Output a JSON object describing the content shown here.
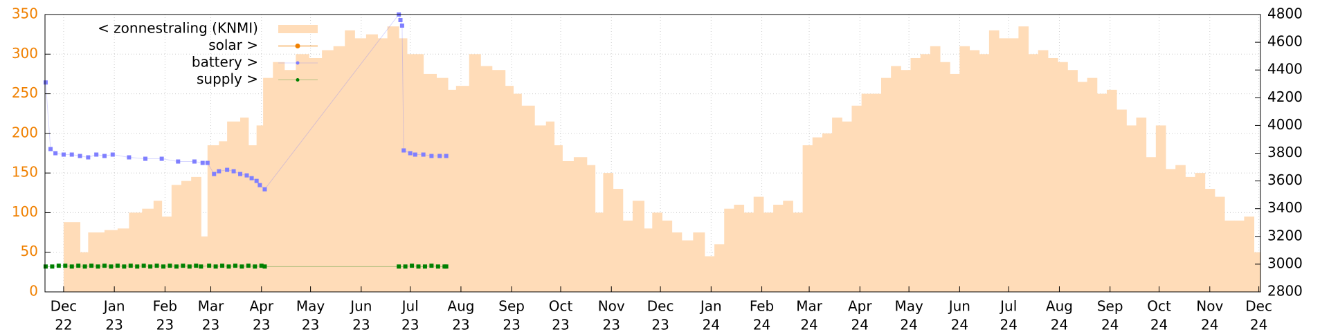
{
  "chart_data": {
    "type": "mixed",
    "xlim": [
      -11.4,
      732
    ],
    "xticks": [
      {
        "value": 0,
        "label": [
          "Dec",
          "22"
        ]
      },
      {
        "value": 31,
        "label": [
          "Jan",
          "23"
        ]
      },
      {
        "value": 62,
        "label": [
          "Feb",
          "23"
        ]
      },
      {
        "value": 90,
        "label": [
          "Mar",
          "23"
        ]
      },
      {
        "value": 121,
        "label": [
          "Apr",
          "23"
        ]
      },
      {
        "value": 151,
        "label": [
          "May",
          "23"
        ]
      },
      {
        "value": 182,
        "label": [
          "Jun",
          "23"
        ]
      },
      {
        "value": 212,
        "label": [
          "Jul",
          "23"
        ]
      },
      {
        "value": 243,
        "label": [
          "Aug",
          "23"
        ]
      },
      {
        "value": 274,
        "label": [
          "Sep",
          "23"
        ]
      },
      {
        "value": 304,
        "label": [
          "Oct",
          "23"
        ]
      },
      {
        "value": 335,
        "label": [
          "Nov",
          "23"
        ]
      },
      {
        "value": 365,
        "label": [
          "Dec",
          "23"
        ]
      },
      {
        "value": 396,
        "label": [
          "Jan",
          "24"
        ]
      },
      {
        "value": 427,
        "label": [
          "Feb",
          "24"
        ]
      },
      {
        "value": 456,
        "label": [
          "Mar",
          "24"
        ]
      },
      {
        "value": 487,
        "label": [
          "Apr",
          "24"
        ]
      },
      {
        "value": 517,
        "label": [
          "May",
          "24"
        ]
      },
      {
        "value": 548,
        "label": [
          "Jun",
          "24"
        ]
      },
      {
        "value": 578,
        "label": [
          "Jul",
          "24"
        ]
      },
      {
        "value": 609,
        "label": [
          "Aug",
          "24"
        ]
      },
      {
        "value": 640,
        "label": [
          "Sep",
          "24"
        ]
      },
      {
        "value": 670,
        "label": [
          "Oct",
          "24"
        ]
      },
      {
        "value": 701,
        "label": [
          "Nov",
          "24"
        ]
      },
      {
        "value": 731,
        "label": [
          "Dec",
          "24"
        ]
      }
    ],
    "ylim": [
      0,
      350
    ],
    "yticks": [
      0,
      50,
      100,
      150,
      200,
      250,
      300,
      350
    ],
    "y2lim": [
      2800,
      4800
    ],
    "y2ticks": [
      2800,
      3000,
      3200,
      3400,
      3600,
      3800,
      4000,
      4200,
      4400,
      4600,
      4800
    ],
    "grid": true,
    "legend": "top-left",
    "ytick_color": "#f08000",
    "series": [
      {
        "name": "< zonnestraling (KNMI)",
        "type": "area",
        "color": "#ffdcb8",
        "x": [
          0,
          10,
          15,
          25,
          33,
          40,
          48,
          55,
          60,
          66,
          72,
          78,
          84,
          88,
          95,
          100,
          108,
          113,
          118,
          122,
          128,
          135,
          142,
          150,
          158,
          165,
          172,
          178,
          185,
          192,
          198,
          205,
          210,
          215,
          220,
          228,
          235,
          240,
          248,
          255,
          262,
          270,
          275,
          280,
          288,
          295,
          300,
          305,
          312,
          320,
          325,
          330,
          336,
          342,
          348,
          355,
          360,
          366,
          372,
          378,
          385,
          392,
          398,
          404,
          410,
          416,
          422,
          428,
          434,
          440,
          446,
          452,
          458,
          464,
          470,
          476,
          482,
          488,
          494,
          500,
          506,
          512,
          518,
          524,
          530,
          536,
          542,
          548,
          554,
          560,
          566,
          572,
          578,
          584,
          590,
          596,
          602,
          608,
          614,
          620,
          626,
          632,
          638,
          644,
          650,
          656,
          662,
          668,
          674,
          680,
          686,
          692,
          698,
          704,
          710,
          716,
          722,
          728
        ],
        "values": [
          88,
          50,
          75,
          78,
          80,
          100,
          105,
          115,
          95,
          135,
          140,
          145,
          70,
          185,
          190,
          215,
          220,
          185,
          210,
          270,
          290,
          280,
          300,
          295,
          305,
          310,
          330,
          320,
          325,
          320,
          335,
          320,
          300,
          300,
          275,
          270,
          255,
          260,
          300,
          285,
          280,
          260,
          250,
          235,
          210,
          215,
          185,
          165,
          170,
          160,
          100,
          150,
          130,
          90,
          115,
          80,
          100,
          90,
          75,
          65,
          75,
          45,
          60,
          105,
          110,
          100,
          120,
          100,
          110,
          115,
          100,
          185,
          195,
          200,
          220,
          215,
          235,
          250,
          250,
          270,
          285,
          280,
          295,
          300,
          310,
          290,
          275,
          310,
          305,
          300,
          330,
          320,
          320,
          335,
          300,
          305,
          295,
          290,
          280,
          265,
          270,
          250,
          255,
          230,
          210,
          220,
          170,
          210,
          155,
          160,
          145,
          150,
          130,
          120,
          90,
          90,
          95,
          50
        ]
      },
      {
        "name": "solar >",
        "type": "line",
        "color": "#f08000",
        "x": [],
        "values": []
      },
      {
        "name": "battery >",
        "type": "points",
        "axis": "y2",
        "color": "#7f7fff",
        "x": [
          -11,
          -8,
          -5,
          0,
          5,
          10,
          15,
          20,
          25,
          30,
          40,
          50,
          60,
          70,
          80,
          85,
          88,
          92,
          95,
          100,
          104,
          108,
          112,
          115,
          118,
          120,
          123,
          205,
          206,
          207,
          208,
          212,
          215,
          220,
          225,
          230,
          234
        ],
        "values": [
          4310,
          3830,
          3800,
          3790,
          3790,
          3780,
          3770,
          3790,
          3780,
          3790,
          3770,
          3760,
          3760,
          3740,
          3740,
          3730,
          3730,
          3650,
          3670,
          3680,
          3670,
          3650,
          3640,
          3620,
          3600,
          3570,
          3540,
          4800,
          4760,
          4720,
          3820,
          3800,
          3790,
          3790,
          3780,
          3780,
          3780
        ]
      },
      {
        "name": "supply >",
        "type": "points",
        "color": "#008000",
        "x": [
          -11,
          -7,
          -3,
          1,
          5,
          9,
          13,
          17,
          21,
          25,
          29,
          33,
          37,
          41,
          45,
          49,
          53,
          57,
          61,
          65,
          69,
          73,
          77,
          81,
          84,
          89,
          93,
          97,
          101,
          105,
          109,
          113,
          117,
          121,
          123,
          205,
          209,
          213,
          217,
          221,
          225,
          229,
          233,
          234
        ],
        "values": [
          32,
          32,
          33,
          33,
          32,
          33,
          32,
          33,
          32,
          33,
          32,
          33,
          32,
          33,
          32,
          33,
          32,
          33,
          32,
          33,
          32,
          33,
          32,
          33,
          32,
          33,
          32,
          33,
          32,
          33,
          32,
          33,
          32,
          33,
          32,
          32,
          32,
          33,
          32,
          32,
          33,
          32,
          32,
          32
        ]
      }
    ]
  }
}
